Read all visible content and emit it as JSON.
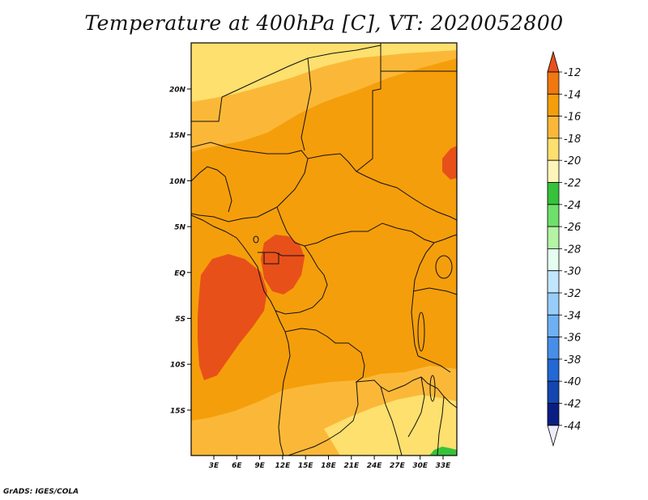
{
  "title": "Temperature at 400hPa [C], VT: 2020052800",
  "credit": "GrADS: IGES/COLA",
  "map": {
    "lon_labels": [
      "3E",
      "6E",
      "9E",
      "12E",
      "15E",
      "18E",
      "21E",
      "24E",
      "27E",
      "30E",
      "33E"
    ],
    "lat_labels": [
      "20N",
      "15N",
      "10N",
      "5N",
      "EQ",
      "5S",
      "10S",
      "15S"
    ]
  },
  "colorbar": {
    "labels": [
      "-12",
      "-14",
      "-16",
      "-18",
      "-20",
      "-22",
      "-24",
      "-26",
      "-28",
      "-30",
      "-32",
      "-34",
      "-36",
      "-38",
      "-40",
      "-42",
      "-44"
    ],
    "colors": [
      "#e8501a",
      "#f07810",
      "#f59e0b",
      "#fbb838",
      "#fde06e",
      "#fff4b8",
      "#36c23a",
      "#6ee06a",
      "#b4f4a4",
      "#e4fff0",
      "#c2e6ff",
      "#98ccfa",
      "#6eb0f4",
      "#468ee8",
      "#2268d6",
      "#1446b2",
      "#0a1e82",
      "#ececfc"
    ]
  }
}
